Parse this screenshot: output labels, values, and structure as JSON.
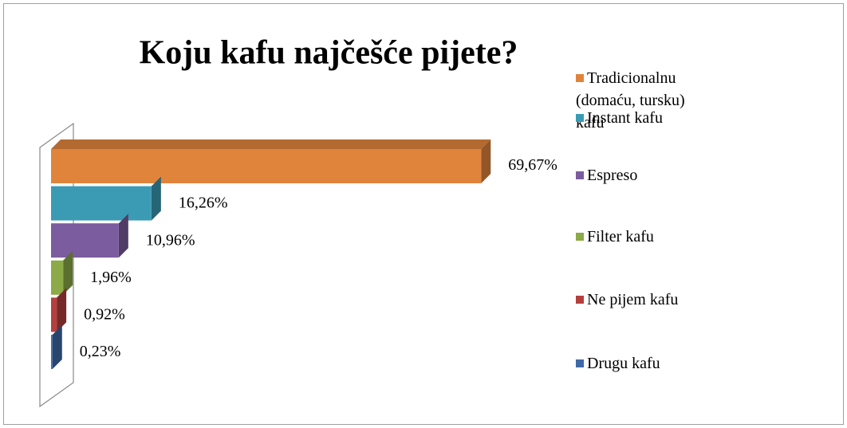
{
  "chart_data": {
    "type": "bar",
    "orientation": "horizontal",
    "title": "Koju kafu najčešće pijete?",
    "categories": [
      "Tradicionalnu (domaću, tursku) kafu",
      "Instant kafu",
      "Espreso",
      "Filter kafu",
      "Ne pijem kafu",
      "Drugu kafu"
    ],
    "values": [
      69.67,
      16.26,
      10.96,
      1.96,
      0.92,
      0.23
    ],
    "value_labels": [
      "69,67%",
      "16,26%",
      "10,96%",
      "1,96%",
      "0,92%",
      "0,23%"
    ],
    "colors": [
      "#e0843c",
      "#3b9bb5",
      "#7b5c9f",
      "#8caa47",
      "#b4403d",
      "#3e6aa8"
    ],
    "legend": "right"
  }
}
